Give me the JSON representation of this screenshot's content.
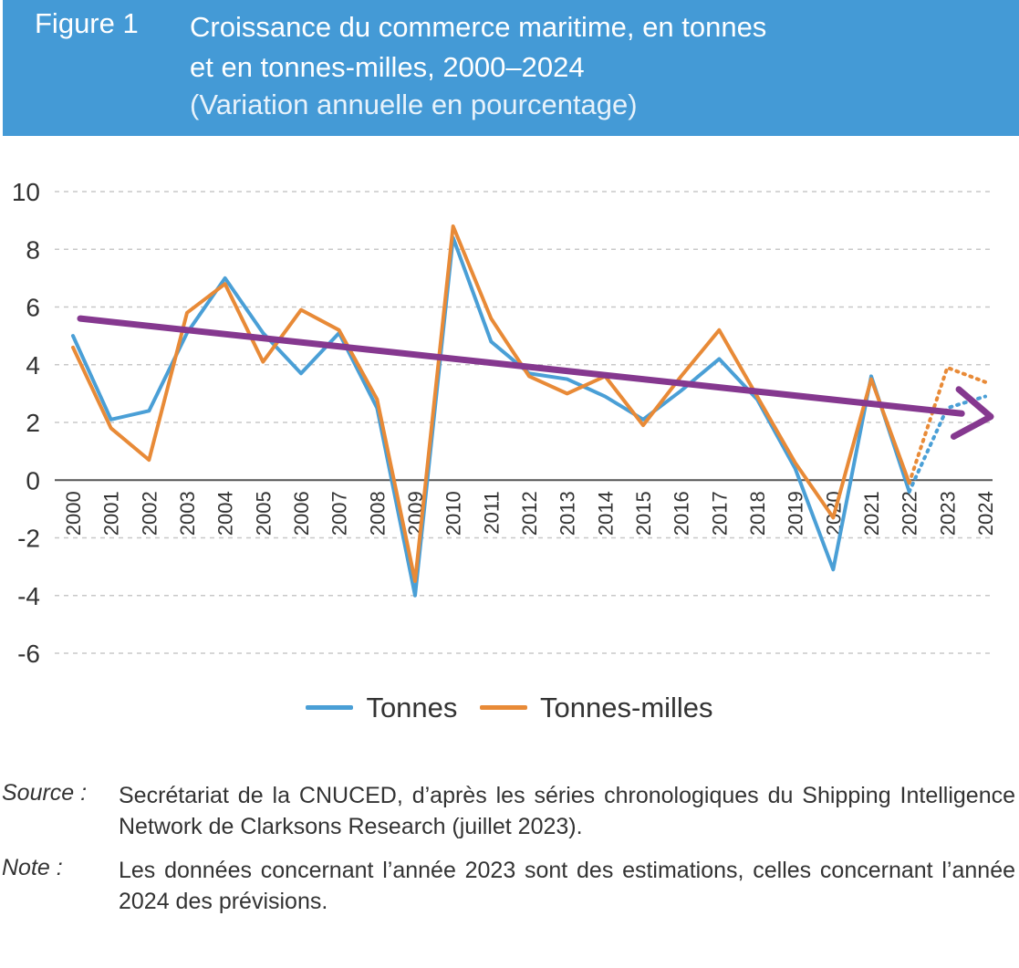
{
  "header": {
    "figure_label": "Figure 1",
    "title_line1": "Croissance du commerce maritime, en tonnes",
    "title_line2": "et en tonnes-milles, 2000–2024",
    "subtitle": "(Variation annuelle en pourcentage)"
  },
  "chart_data": {
    "type": "line",
    "title": "Croissance du commerce maritime, en tonnes et en tonnes-milles, 2000–2024",
    "subtitle": "(Variation annuelle en pourcentage)",
    "xlabel": "",
    "ylabel": "",
    "ylim": [
      -6,
      10
    ],
    "yticks": [
      "10",
      "8",
      "6",
      "4",
      "2",
      "0",
      "-2",
      "-4",
      "-6"
    ],
    "categories": [
      "2000",
      "2001",
      "2002",
      "2003",
      "2004",
      "2005",
      "2006",
      "2007",
      "2008",
      "2009",
      "2010",
      "2011",
      "2012",
      "2013",
      "2014",
      "2015",
      "2016",
      "2017",
      "2018",
      "2019",
      "2020",
      "2021",
      "2022",
      "2023",
      "2024"
    ],
    "series": [
      {
        "name": "Tonnes",
        "color": "#4a9fd6",
        "values": [
          5.0,
          2.1,
          2.4,
          5.1,
          7.0,
          5.1,
          3.7,
          5.1,
          2.5,
          -4.0,
          8.4,
          4.8,
          3.7,
          3.5,
          2.9,
          2.1,
          3.1,
          4.2,
          2.8,
          0.4,
          -3.1,
          3.6,
          -0.4,
          2.5,
          2.9
        ],
        "projected_from_index": 22
      },
      {
        "name": "Tonnes-milles",
        "color": "#e88a37",
        "values": [
          4.6,
          1.8,
          0.7,
          5.8,
          6.8,
          4.1,
          5.9,
          5.2,
          2.8,
          -3.5,
          8.8,
          5.6,
          3.6,
          3.0,
          3.6,
          1.9,
          3.6,
          5.2,
          2.9,
          0.6,
          -1.3,
          3.5,
          -0.1,
          3.9,
          3.4
        ],
        "projected_from_index": 22
      }
    ],
    "annotations": [
      {
        "type": "trend-arrow",
        "color": "#85388f",
        "from": {
          "x": "2000",
          "y": 5.6
        },
        "to": {
          "x": "2024",
          "y": 2.2
        }
      }
    ],
    "legend": [
      "Tonnes",
      "Tonnes-milles"
    ],
    "legend_position": "bottom-center",
    "grid": true
  },
  "footnotes": {
    "source_label": "Source :",
    "source_text": "Secrétariat de la CNUCED, d’après les séries chronologiques du Shipping Intelligence Network de Clarksons Research (juillet 2023).",
    "note_label": "Note :",
    "note_text": "Les données concernant l’année 2023 sont des estimations, celles concernant l’année 2024 des prévisions."
  }
}
